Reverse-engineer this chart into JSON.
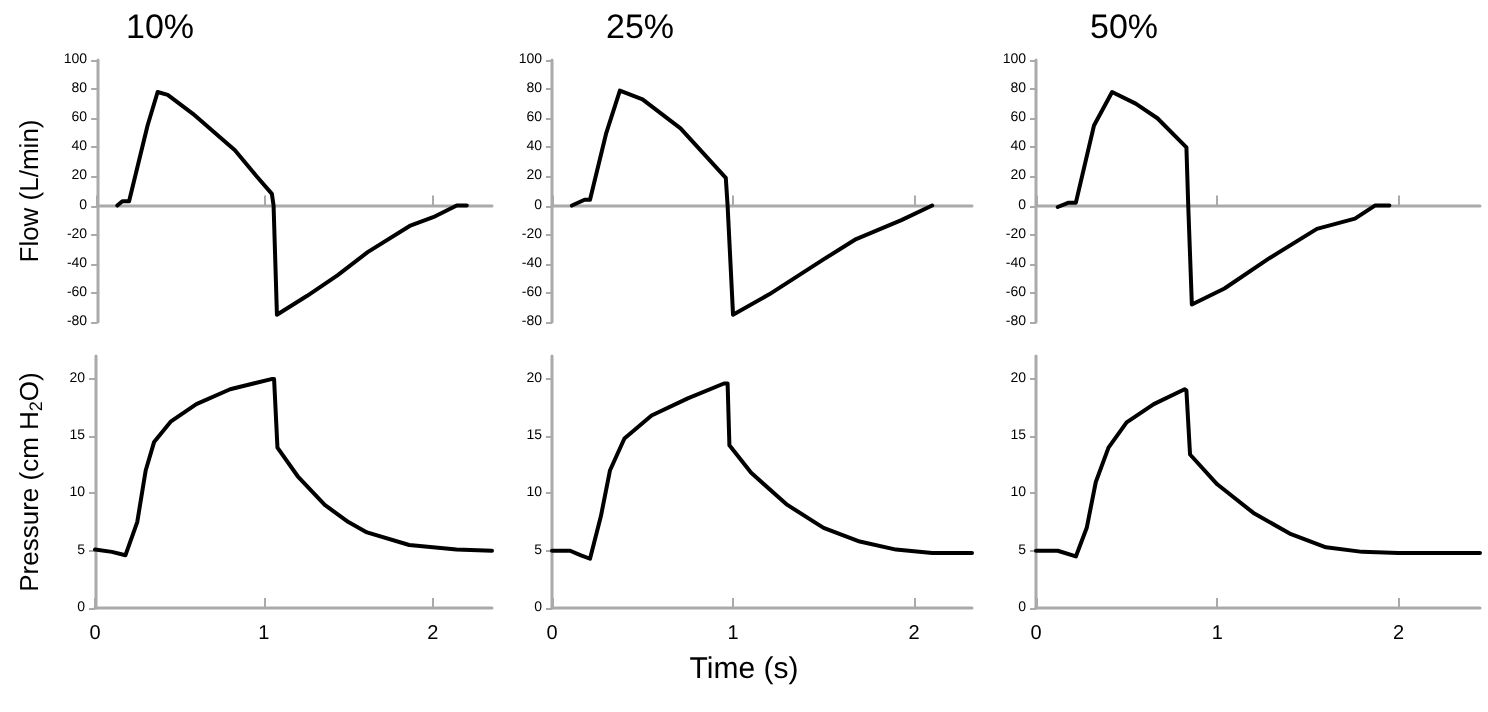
{
  "chart_data": [
    {
      "type": "line",
      "title": "10%",
      "ylabel": "Flow (L/min)",
      "xlim": [
        0,
        2.35
      ],
      "xticks": [
        {
          "value": 0,
          "label": null
        },
        {
          "value": 1,
          "label": null
        },
        {
          "value": 2,
          "label": null
        }
      ],
      "ylim": [
        -80,
        100
      ],
      "yticks": [
        -80,
        -60,
        -40,
        -20,
        0,
        20,
        40,
        60,
        80,
        100
      ],
      "tick_labels": "y",
      "marker": "none",
      "line_style": "solid",
      "series": [
        {
          "color": "#000000",
          "x": [
            0.12,
            0.15,
            0.19,
            0.3,
            0.36,
            0.42,
            0.57,
            0.7,
            0.82,
            0.95,
            1.04,
            1.05,
            1.07,
            1.25,
            1.43,
            1.61,
            1.86,
            2.0,
            2.14,
            2.2
          ],
          "values": [
            0,
            3,
            3,
            55,
            78,
            76,
            63,
            50,
            38,
            20,
            8,
            0,
            -75,
            -62,
            -48,
            -32,
            -14,
            -8,
            0,
            0
          ]
        }
      ]
    },
    {
      "type": "line",
      "title": "25%",
      "xlim": [
        0,
        2.32
      ],
      "xticks": [
        {
          "value": 0,
          "label": null
        },
        {
          "value": 1,
          "label": null
        },
        {
          "value": 2,
          "label": null
        }
      ],
      "ylim": [
        -80,
        100
      ],
      "yticks": [
        -80,
        -60,
        -40,
        -20,
        0,
        20,
        40,
        60,
        80,
        100
      ],
      "tick_labels": "y",
      "marker": "none",
      "line_style": "solid",
      "series": [
        {
          "color": "#000000",
          "x": [
            0.11,
            0.18,
            0.21,
            0.3,
            0.375,
            0.5,
            0.71,
            0.96,
            0.97,
            1.0,
            1.2,
            1.5,
            1.68,
            1.93,
            2.1
          ],
          "values": [
            0,
            4,
            4,
            50,
            79,
            73,
            53,
            19,
            0,
            -75,
            -61,
            -37,
            -23,
            -10,
            0
          ]
        }
      ]
    },
    {
      "type": "line",
      "title": "50%",
      "xlim": [
        0,
        2.45
      ],
      "xticks": [
        {
          "value": 0,
          "label": null
        },
        {
          "value": 1,
          "label": null
        },
        {
          "value": 2,
          "label": null
        }
      ],
      "ylim": [
        -80,
        100
      ],
      "yticks": [
        -80,
        -60,
        -40,
        -20,
        0,
        20,
        40,
        60,
        80,
        100
      ],
      "tick_labels": "y",
      "marker": "none",
      "line_style": "solid",
      "series": [
        {
          "color": "#000000",
          "x": [
            0.12,
            0.18,
            0.22,
            0.32,
            0.42,
            0.55,
            0.67,
            0.83,
            0.84,
            0.86,
            1.04,
            1.29,
            1.55,
            1.76,
            1.87,
            1.95
          ],
          "values": [
            -1,
            2,
            2,
            55,
            78,
            70,
            60,
            40,
            0,
            -68,
            -57,
            -36,
            -16,
            -9,
            0,
            0
          ]
        }
      ]
    },
    {
      "type": "line",
      "ylabel": "Pressure (cm H$_{2}$O)",
      "xlim": [
        0,
        2.35
      ],
      "xticks": [
        0,
        1,
        2
      ],
      "ylim": [
        0,
        22
      ],
      "yticks": [
        0,
        5,
        10,
        15,
        20
      ],
      "marker": "none",
      "line_style": "solid",
      "series": [
        {
          "color": "#000000",
          "x": [
            0,
            0.1,
            0.18,
            0.25,
            0.3,
            0.35,
            0.45,
            0.6,
            0.8,
            1.05,
            1.06,
            1.08,
            1.2,
            1.36,
            1.5,
            1.61,
            1.86,
            2.14,
            2.35
          ],
          "values": [
            5.1,
            4.9,
            4.6,
            7.5,
            12,
            14.5,
            16.3,
            17.8,
            19.1,
            20,
            20,
            14,
            11.5,
            9,
            7.5,
            6.6,
            5.5,
            5.1,
            5
          ]
        }
      ]
    },
    {
      "type": "line",
      "xlabel": "Time (s)",
      "xlim": [
        0,
        2.32
      ],
      "xticks": [
        0,
        1,
        2
      ],
      "ylim": [
        0,
        22
      ],
      "yticks": [
        0,
        5,
        10,
        15,
        20
      ],
      "marker": "none",
      "line_style": "solid",
      "series": [
        {
          "color": "#000000",
          "x": [
            0,
            0.1,
            0.16,
            0.21,
            0.27,
            0.32,
            0.4,
            0.55,
            0.75,
            0.95,
            0.97,
            0.98,
            1.1,
            1.3,
            1.5,
            1.7,
            1.9,
            2.1,
            2.32
          ],
          "values": [
            5,
            5,
            4.6,
            4.3,
            8,
            12,
            14.8,
            16.8,
            18.3,
            19.6,
            19.6,
            14.2,
            11.8,
            9,
            7,
            5.8,
            5.1,
            4.8,
            4.8
          ]
        }
      ]
    },
    {
      "type": "line",
      "xlim": [
        0,
        2.45
      ],
      "xticks": [
        0,
        1,
        2
      ],
      "ylim": [
        0,
        22
      ],
      "yticks": [
        0,
        5,
        10,
        15,
        20
      ],
      "marker": "none",
      "line_style": "solid",
      "series": [
        {
          "color": "#000000",
          "x": [
            0,
            0.12,
            0.22,
            0.28,
            0.33,
            0.4,
            0.5,
            0.65,
            0.82,
            0.83,
            0.85,
            1.0,
            1.2,
            1.4,
            1.6,
            1.8,
            2.0,
            2.45
          ],
          "values": [
            5,
            5,
            4.5,
            7,
            11,
            14,
            16.2,
            17.8,
            19.1,
            19,
            13.4,
            10.8,
            8.3,
            6.5,
            5.3,
            4.9,
            4.8,
            4.8
          ]
        }
      ]
    }
  ]
}
